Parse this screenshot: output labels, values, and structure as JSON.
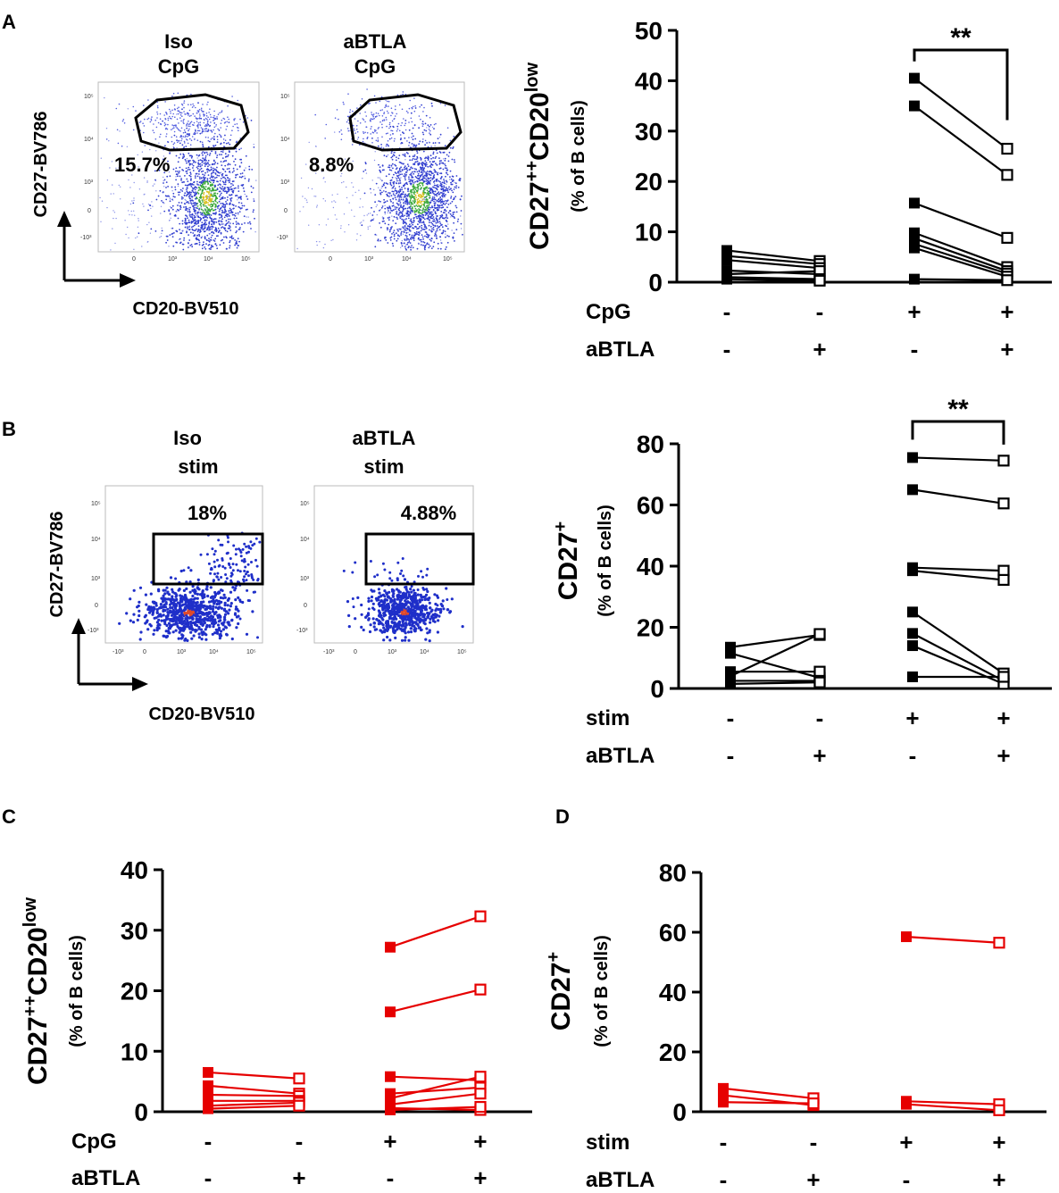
{
  "panel_labels": {
    "a": "A",
    "b": "B",
    "c": "C",
    "d": "D"
  },
  "flow_panels": {
    "a": {
      "plots": [
        {
          "title_line1": "Iso",
          "title_line2": "CpG",
          "percent": "15.7%"
        },
        {
          "title_line1": "aBTLA",
          "title_line2": "CpG",
          "percent": "8.8%"
        }
      ],
      "y_axis": "CD27-BV786",
      "x_axis": "CD20-BV510"
    },
    "b": {
      "plots": [
        {
          "title_line1": "Iso",
          "title_line2": "stim",
          "percent": "18%"
        },
        {
          "title_line1": "aBTLA",
          "title_line2": "stim",
          "percent": "4.88%"
        }
      ],
      "y_axis": "CD27-BV786",
      "x_axis": "CD20-BV510"
    },
    "tick_labels": {
      "t5": "10⁵",
      "t4": "10⁴",
      "t3": "10³",
      "t0": "0",
      "tm3": "-10³"
    }
  },
  "colors": {
    "black": "#000000",
    "red": "#e60000",
    "gate": "#000000",
    "dots_blue": "#1f2fc9",
    "dots_green": "#3aa83a",
    "dots_red": "#e04a2a"
  },
  "chart_data": [
    {
      "id": "A",
      "type": "scatter",
      "color": "#000000",
      "ylabel_main": "CD27",
      "ylabel_sup": "++",
      "ylabel_main2": "CD20",
      "ylabel_sup2": "low",
      "ylabel_sub": "(% of B cells)",
      "ylim": [
        0,
        50
      ],
      "yticks": [
        0,
        10,
        20,
        30,
        40,
        50
      ],
      "row_labels": [
        "CpG",
        "aBTLA"
      ],
      "rows": [
        [
          "-",
          "-",
          "+",
          "+"
        ],
        [
          "-",
          "+",
          "-",
          "+"
        ]
      ],
      "significance": "**",
      "pairs": [
        {
          "group": 0,
          "from": 6.3,
          "to": 4.2
        },
        {
          "group": 0,
          "from": 5.2,
          "to": 3.6
        },
        {
          "group": 0,
          "from": 4.4,
          "to": 2.8
        },
        {
          "group": 0,
          "from": 2.3,
          "to": 1.6
        },
        {
          "group": 0,
          "from": 1.6,
          "to": 2.2
        },
        {
          "group": 0,
          "from": 1.0,
          "to": 0.6
        },
        {
          "group": 0,
          "from": 0.6,
          "to": 0.3
        },
        {
          "group": 1,
          "from": 40.5,
          "to": 26.5
        },
        {
          "group": 1,
          "from": 35.0,
          "to": 21.3
        },
        {
          "group": 1,
          "from": 15.7,
          "to": 8.8
        },
        {
          "group": 1,
          "from": 9.8,
          "to": 3.0
        },
        {
          "group": 1,
          "from": 8.7,
          "to": 2.2
        },
        {
          "group": 1,
          "from": 7.6,
          "to": 1.7
        },
        {
          "group": 1,
          "from": 6.8,
          "to": 1.1
        },
        {
          "group": 1,
          "from": 0.6,
          "to": 0.4
        }
      ]
    },
    {
      "id": "B",
      "type": "scatter",
      "color": "#000000",
      "ylabel_main": "CD27",
      "ylabel_sup": "+",
      "ylabel_main2": "",
      "ylabel_sup2": "",
      "ylabel_sub": "(% of B cells)",
      "ylim": [
        0,
        80
      ],
      "yticks": [
        0,
        20,
        40,
        60,
        80
      ],
      "row_labels": [
        "stim",
        "aBTLA"
      ],
      "rows": [
        [
          "-",
          "-",
          "+",
          "+"
        ],
        [
          "-",
          "+",
          "-",
          "+"
        ]
      ],
      "significance": "**",
      "pairs": [
        {
          "group": 0,
          "from": 13.5,
          "to": 17.5
        },
        {
          "group": 0,
          "from": 11.5,
          "to": 3.5
        },
        {
          "group": 0,
          "from": 5.5,
          "to": 5.5
        },
        {
          "group": 0,
          "from": 4.0,
          "to": 17.8
        },
        {
          "group": 0,
          "from": 2.5,
          "to": 2.5
        },
        {
          "group": 0,
          "from": 1.5,
          "to": 2.0
        },
        {
          "group": 1,
          "from": 75.5,
          "to": 74.5
        },
        {
          "group": 1,
          "from": 65.0,
          "to": 60.5
        },
        {
          "group": 1,
          "from": 39.5,
          "to": 38.5
        },
        {
          "group": 1,
          "from": 38.5,
          "to": 35.5
        },
        {
          "group": 1,
          "from": 25.0,
          "to": 4.9
        },
        {
          "group": 1,
          "from": 18.0,
          "to": 2.5
        },
        {
          "group": 1,
          "from": 14.0,
          "to": 1.5
        },
        {
          "group": 1,
          "from": 3.8,
          "to": 3.8
        }
      ]
    },
    {
      "id": "C",
      "type": "scatter",
      "color": "#e60000",
      "ylabel_main": "CD27",
      "ylabel_sup": "++",
      "ylabel_main2": "CD20",
      "ylabel_sup2": "low",
      "ylabel_sub": "(% of B cells)",
      "ylim": [
        0,
        40
      ],
      "yticks": [
        0,
        10,
        20,
        30,
        40
      ],
      "row_labels": [
        "CpG",
        "aBTLA"
      ],
      "rows": [
        [
          "-",
          "-",
          "+",
          "+"
        ],
        [
          "-",
          "+",
          "-",
          "+"
        ]
      ],
      "significance": "",
      "pairs": [
        {
          "group": 0,
          "from": 6.5,
          "to": 5.5
        },
        {
          "group": 0,
          "from": 4.3,
          "to": 3.0
        },
        {
          "group": 0,
          "from": 2.8,
          "to": 2.6
        },
        {
          "group": 0,
          "from": 1.8,
          "to": 1.8
        },
        {
          "group": 0,
          "from": 1.0,
          "to": 1.5
        },
        {
          "group": 0,
          "from": 0.5,
          "to": 1.0
        },
        {
          "group": 1,
          "from": 27.2,
          "to": 32.3
        },
        {
          "group": 1,
          "from": 16.5,
          "to": 20.2
        },
        {
          "group": 1,
          "from": 5.8,
          "to": 5.2
        },
        {
          "group": 1,
          "from": 3.0,
          "to": 4.0
        },
        {
          "group": 1,
          "from": 2.2,
          "to": 5.8
        },
        {
          "group": 1,
          "from": 1.2,
          "to": 3.0
        },
        {
          "group": 1,
          "from": 0.6,
          "to": 0.3
        },
        {
          "group": 1,
          "from": 0.3,
          "to": 0.8
        }
      ]
    },
    {
      "id": "D",
      "type": "scatter",
      "color": "#e60000",
      "ylabel_main": "CD27",
      "ylabel_sup": "+",
      "ylabel_main2": "",
      "ylabel_sup2": "",
      "ylabel_sub": "(% of B cells)",
      "ylim": [
        0,
        80
      ],
      "yticks": [
        0,
        20,
        40,
        60,
        80
      ],
      "row_labels": [
        "stim",
        "aBTLA"
      ],
      "rows": [
        [
          "-",
          "-",
          "+",
          "+"
        ],
        [
          "-",
          "+",
          "-",
          "+"
        ]
      ],
      "significance": "",
      "pairs": [
        {
          "group": 0,
          "from": 7.8,
          "to": 4.5
        },
        {
          "group": 0,
          "from": 5.5,
          "to": 2.2
        },
        {
          "group": 0,
          "from": 3.2,
          "to": 2.8
        },
        {
          "group": 1,
          "from": 58.5,
          "to": 56.5
        },
        {
          "group": 1,
          "from": 3.5,
          "to": 2.5
        },
        {
          "group": 1,
          "from": 2.5,
          "to": 0.5
        }
      ]
    }
  ]
}
